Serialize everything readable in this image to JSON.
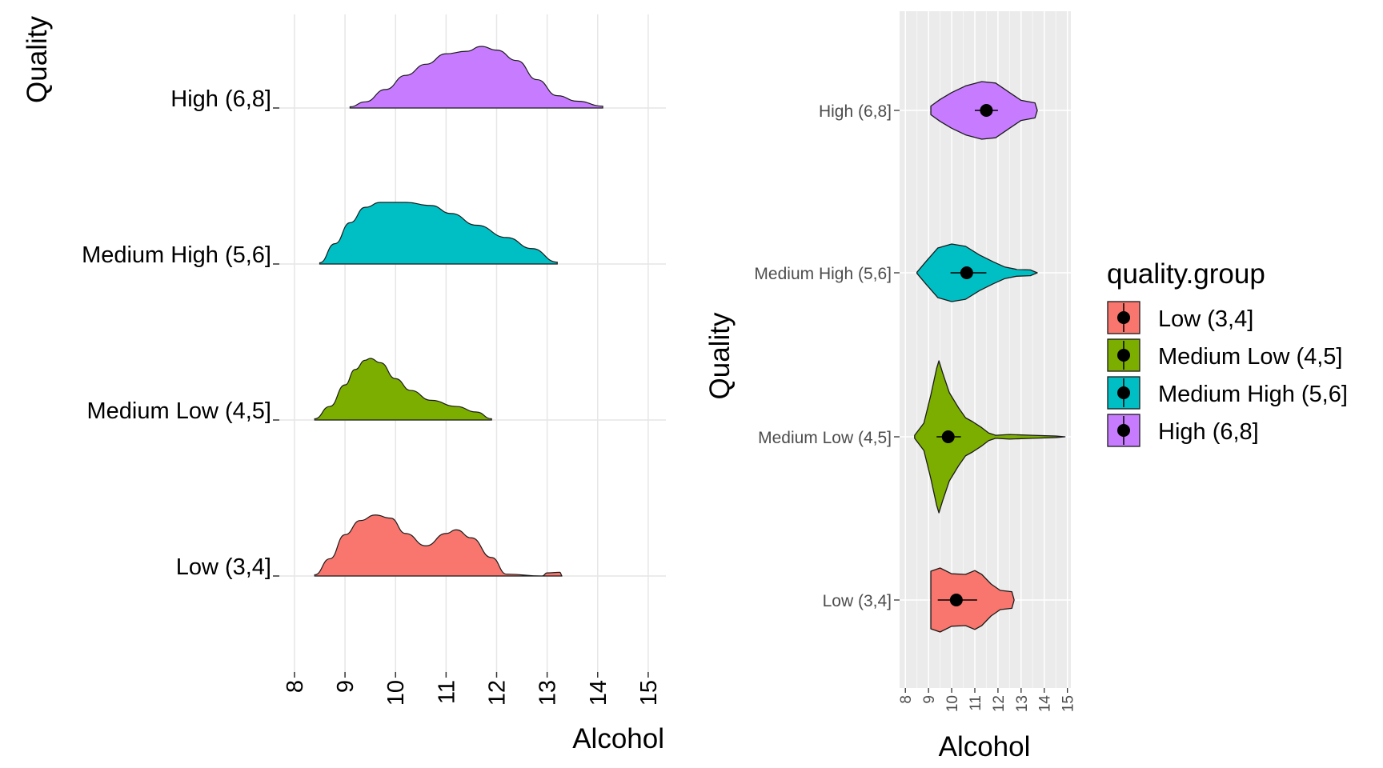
{
  "chart_data": [
    {
      "type": "area",
      "subtype": "ridgeline-density",
      "xlabel": "Alcohol",
      "ylabel": "Quality",
      "xlim": [
        7.7,
        15.35
      ],
      "x_ticks": [
        8,
        9,
        10,
        11,
        12,
        13,
        14,
        15
      ],
      "x_tick_labels": [
        "8",
        "9",
        "10",
        "11",
        "12",
        "13",
        "14",
        "15"
      ],
      "tick_label_rotation": "vertical",
      "grid": true,
      "categories": [
        "High (6,8]",
        "Medium High (5,6]",
        "Medium Low (4,5]",
        "Low (3,4]"
      ],
      "series": [
        {
          "name": "High (6,8]",
          "color": "#C77CFF",
          "density": [
            [
              9.1,
              0.02
            ],
            [
              9.4,
              0.1
            ],
            [
              9.8,
              0.3
            ],
            [
              10.2,
              0.53
            ],
            [
              10.6,
              0.71
            ],
            [
              11.0,
              0.88
            ],
            [
              11.4,
              0.92
            ],
            [
              11.7,
              1.0
            ],
            [
              12.0,
              0.94
            ],
            [
              12.4,
              0.77
            ],
            [
              12.8,
              0.46
            ],
            [
              13.2,
              0.2
            ],
            [
              13.6,
              0.11
            ],
            [
              14.1,
              0.03
            ]
          ]
        },
        {
          "name": "Medium High (5,6]",
          "color": "#00BFC4",
          "density": [
            [
              8.5,
              0.02
            ],
            [
              8.8,
              0.33
            ],
            [
              9.1,
              0.67
            ],
            [
              9.4,
              0.92
            ],
            [
              9.7,
              1.0
            ],
            [
              10.2,
              1.0
            ],
            [
              10.7,
              0.95
            ],
            [
              11.1,
              0.82
            ],
            [
              11.6,
              0.63
            ],
            [
              12.2,
              0.43
            ],
            [
              12.7,
              0.25
            ],
            [
              13.2,
              0.03
            ]
          ]
        },
        {
          "name": "Medium Low (4,5]",
          "color": "#7CAE00",
          "density": [
            [
              8.4,
              0.02
            ],
            [
              8.7,
              0.22
            ],
            [
              9.0,
              0.57
            ],
            [
              9.2,
              0.82
            ],
            [
              9.4,
              0.97
            ],
            [
              9.5,
              1.0
            ],
            [
              9.7,
              0.93
            ],
            [
              10.0,
              0.67
            ],
            [
              10.3,
              0.48
            ],
            [
              10.7,
              0.32
            ],
            [
              11.2,
              0.22
            ],
            [
              11.6,
              0.13
            ],
            [
              11.9,
              0.02
            ]
          ]
        },
        {
          "name": "Low (3,4]",
          "color": "#F8766D",
          "density": [
            [
              8.4,
              0.02
            ],
            [
              8.7,
              0.28
            ],
            [
              9.0,
              0.67
            ],
            [
              9.3,
              0.9
            ],
            [
              9.6,
              0.99
            ],
            [
              9.9,
              0.94
            ],
            [
              10.2,
              0.69
            ],
            [
              10.6,
              0.49
            ],
            [
              11.0,
              0.69
            ],
            [
              11.2,
              0.75
            ],
            [
              11.5,
              0.62
            ],
            [
              11.9,
              0.3
            ],
            [
              12.2,
              0.03
            ],
            [
              12.9,
              0.0
            ],
            [
              13.0,
              0.05
            ],
            [
              13.25,
              0.06
            ],
            [
              13.3,
              0.0
            ]
          ]
        }
      ]
    },
    {
      "type": "violin",
      "xlabel": "Alcohol",
      "ylabel": "Quality",
      "xlim": [
        7.75,
        15.15
      ],
      "x_ticks": [
        8,
        9,
        10,
        11,
        12,
        13,
        14,
        15
      ],
      "x_tick_labels": [
        "8",
        "9",
        "10",
        "11",
        "12",
        "13",
        "14",
        "15"
      ],
      "tick_label_rotation": "vertical",
      "grid": true,
      "background": "#EBEBEB",
      "categories": [
        "High (6,8]",
        "Medium High (5,6]",
        "Medium Low (4,5]",
        "Low (3,4]"
      ],
      "series": [
        {
          "name": "High (6,8]",
          "color": "#C77CFF",
          "mean": 11.5,
          "error_bar": [
            11.0,
            12.0
          ],
          "density": [
            [
              9.1,
              0.15
            ],
            [
              9.5,
              0.38
            ],
            [
              10.0,
              0.62
            ],
            [
              10.6,
              0.85
            ],
            [
              11.3,
              1.0
            ],
            [
              11.9,
              0.95
            ],
            [
              12.5,
              0.62
            ],
            [
              13.0,
              0.35
            ],
            [
              13.6,
              0.26
            ],
            [
              13.7,
              0.0
            ]
          ]
        },
        {
          "name": "Medium High (5,6]",
          "color": "#00BFC4",
          "mean": 10.65,
          "error_bar": [
            9.95,
            11.5
          ],
          "density": [
            [
              8.5,
              0.02
            ],
            [
              8.9,
              0.4
            ],
            [
              9.4,
              0.86
            ],
            [
              10.0,
              1.0
            ],
            [
              10.6,
              0.92
            ],
            [
              11.2,
              0.62
            ],
            [
              11.8,
              0.38
            ],
            [
              12.3,
              0.2
            ],
            [
              12.8,
              0.12
            ],
            [
              13.4,
              0.1
            ],
            [
              13.7,
              0.0
            ]
          ]
        },
        {
          "name": "Medium Low (4,5]",
          "color": "#7CAE00",
          "mean": 9.85,
          "error_bar": [
            9.35,
            10.4
          ],
          "density": [
            [
              8.4,
              0.02
            ],
            [
              8.8,
              0.18
            ],
            [
              9.1,
              0.55
            ],
            [
              9.35,
              0.9
            ],
            [
              9.45,
              1.0
            ],
            [
              9.6,
              0.85
            ],
            [
              9.9,
              0.58
            ],
            [
              10.3,
              0.38
            ],
            [
              10.6,
              0.25
            ],
            [
              10.9,
              0.2
            ],
            [
              11.3,
              0.12
            ],
            [
              11.6,
              0.05
            ],
            [
              11.9,
              0.02
            ],
            [
              12.5,
              0.03
            ],
            [
              13.5,
              0.02
            ],
            [
              14.5,
              0.01
            ],
            [
              14.9,
              0.0
            ]
          ]
        },
        {
          "name": "Low (3,4]",
          "color": "#F8766D",
          "mean": 10.2,
          "error_bar": [
            9.4,
            11.1
          ],
          "density": [
            [
              9.1,
              0.9
            ],
            [
              9.5,
              1.0
            ],
            [
              10.0,
              0.82
            ],
            [
              10.6,
              0.8
            ],
            [
              11.0,
              0.92
            ],
            [
              11.3,
              0.8
            ],
            [
              11.7,
              0.5
            ],
            [
              12.1,
              0.3
            ],
            [
              12.6,
              0.26
            ],
            [
              12.7,
              0.0
            ]
          ]
        }
      ],
      "legend": {
        "title": "quality.group",
        "position": "right",
        "entries": [
          "Low (3,4]",
          "Medium Low (4,5]",
          "Medium High (5,6]",
          "High (6,8]"
        ],
        "colors": [
          "#F8766D",
          "#7CAE00",
          "#00BFC4",
          "#C77CFF"
        ]
      }
    }
  ]
}
